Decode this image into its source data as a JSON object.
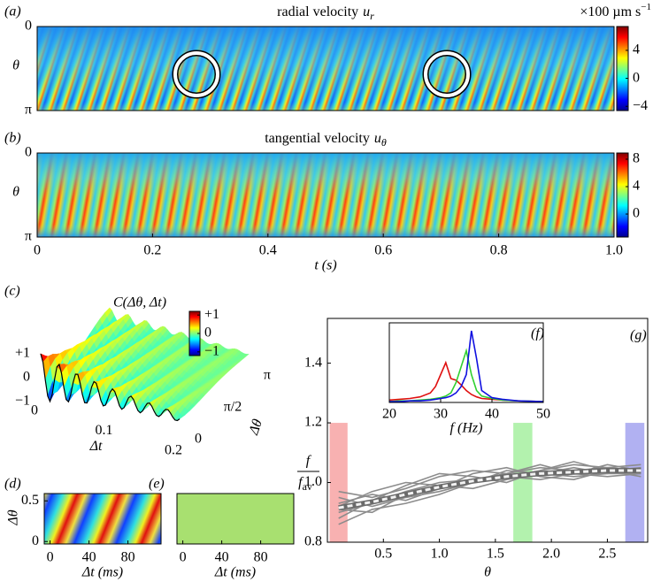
{
  "chart_data": [
    {
      "type": "heatmap",
      "panel": "(a)",
      "title": "radial velocity",
      "title_symbol": "u",
      "title_subscript": "r",
      "ylabel": "θ",
      "ylim": [
        0,
        3.1416
      ],
      "yticks": [
        {
          "value": 0,
          "label": "0"
        },
        {
          "value": 3.1416,
          "label": "π"
        }
      ],
      "xlim": [
        0,
        1
      ],
      "colorbar": {
        "label": "×100 µm s",
        "label_superscript": "−1",
        "clim": [
          -4.6,
          7.4
        ],
        "ticks": [
          {
            "value": -4,
            "label": "−4"
          },
          0,
          4
        ]
      }
    },
    {
      "type": "heatmap",
      "panel": "(b)",
      "title": "tangential velocity",
      "title_symbol": "u",
      "title_subscript": "θ",
      "ylabel": "θ",
      "ylim": [
        0,
        3.1416
      ],
      "yticks": [
        {
          "value": 0,
          "label": "0"
        },
        {
          "value": 3.1416,
          "label": "π"
        }
      ],
      "xlabel": "t (s)",
      "xlim": [
        0,
        1
      ],
      "xticks": [
        0,
        0.2,
        0.4,
        0.6,
        0.8,
        {
          "value": 1,
          "label": "1.0"
        }
      ],
      "colorbar": {
        "clim": [
          -3.35,
          8.9
        ],
        "ticks": [
          0,
          4,
          8
        ]
      }
    },
    {
      "type": "surface",
      "panel": "(c)",
      "title": "C(Δθ, Δt)",
      "zticks": [
        {
          "value": 1,
          "label": "+1"
        },
        0,
        {
          "value": -1,
          "label": "−1"
        }
      ],
      "xlabel": "Δt",
      "xticks": [
        0,
        0.1,
        0.2
      ],
      "ylabel": "Δθ",
      "yticks": [
        0,
        {
          "value": 1.5708,
          "label": "π/2"
        },
        {
          "value": 3.1416,
          "label": "π"
        }
      ],
      "colorbar": {
        "clim": [
          -1.2,
          1.2
        ],
        "ticks": [
          {
            "value": 1,
            "label": "+1"
          },
          0,
          {
            "value": -1,
            "label": "−1"
          }
        ]
      }
    },
    {
      "type": "heatmap",
      "panel": "(d)",
      "ylabel": "Δθ",
      "ylim": [
        -0.03,
        0.59
      ],
      "yticks": [
        0,
        0.5
      ],
      "xlabel": "Δt (ms)",
      "xlim": [
        -6,
        114
      ],
      "xticks": [
        0,
        40,
        80
      ]
    },
    {
      "type": "heatmap",
      "panel": "(e)",
      "ylim": [
        -0.03,
        0.59
      ],
      "xlabel": "Δt (ms)",
      "xlim": [
        -6,
        114
      ],
      "xticks": [
        0,
        40,
        80
      ]
    },
    {
      "type": "line",
      "panel": "(g)",
      "xlabel": "θ",
      "ylabel_numerator": "f",
      "ylabel_denominator": "f",
      "ylabel_subscript": "av",
      "xlim": [
        0,
        2.86
      ],
      "xticks": [
        0.5,
        {
          "value": 1,
          "label": "1.0"
        },
        1.5,
        {
          "value": 2,
          "label": "2.0"
        },
        2.5
      ],
      "ylim": [
        0.8,
        1.55
      ],
      "yticks": [
        0.8,
        {
          "value": 1,
          "label": "1.0"
        },
        1.2,
        1.4
      ],
      "bands": [
        {
          "range": [
            0.02,
            0.18
          ],
          "color": "#f7a3a3"
        },
        {
          "range": [
            1.66,
            1.83
          ],
          "color": "#a6f0a0"
        },
        {
          "range": [
            2.66,
            2.83
          ],
          "color": "#a3a3f0"
        }
      ],
      "band_ylim": [
        0.8,
        1.2
      ],
      "x": [
        0.1,
        0.4,
        0.7,
        1.0,
        1.3,
        1.6,
        1.9,
        2.2,
        2.5,
        2.8
      ],
      "series": [
        {
          "color": "#8c8c8c",
          "values": [
            0.9,
            0.93,
            0.97,
            1.0,
            1.01,
            1.03,
            1.05,
            1.04,
            1.05,
            1.06
          ]
        },
        {
          "color": "#8c8c8c",
          "values": [
            0.95,
            0.92,
            0.95,
            0.97,
            1.0,
            1.02,
            1.01,
            1.03,
            1.02,
            1.03
          ]
        },
        {
          "color": "#8c8c8c",
          "values": [
            0.88,
            0.94,
            0.99,
            1.03,
            1.02,
            1.0,
            1.04,
            1.06,
            1.05,
            1.04
          ]
        },
        {
          "color": "#8c8c8c",
          "values": [
            0.93,
            0.96,
            0.94,
            0.98,
            1.03,
            1.05,
            1.02,
            1.01,
            1.04,
            1.02
          ]
        },
        {
          "color": "#8c8c8c",
          "values": [
            0.91,
            0.9,
            0.96,
            0.99,
            0.98,
            1.01,
            1.03,
            1.05,
            1.03,
            1.05
          ]
        },
        {
          "color": "#8c8c8c",
          "values": [
            0.97,
            0.95,
            0.98,
            1.02,
            1.04,
            1.03,
            1.06,
            1.03,
            1.06,
            1.04
          ]
        },
        {
          "color": "#8c8c8c",
          "values": [
            0.86,
            0.91,
            0.93,
            0.96,
            1.0,
            1.04,
            1.03,
            1.02,
            1.03,
            1.03
          ]
        },
        {
          "color": "#8c8c8c",
          "values": [
            0.92,
            0.97,
            1.0,
            0.99,
            1.01,
            1.02,
            1.04,
            1.07,
            1.04,
            1.05
          ]
        },
        {
          "color": "#f2f2f2",
          "dashed": true,
          "values": [
            0.915,
            0.935,
            0.96,
            0.985,
            1.005,
            1.02,
            1.03,
            1.035,
            1.04,
            1.04
          ]
        }
      ]
    },
    {
      "type": "line",
      "panel": "(f)",
      "xlabel": "f (Hz)",
      "xlim": [
        20,
        50
      ],
      "xticks": [
        20,
        30,
        40,
        50
      ],
      "ylim": [
        0,
        1
      ],
      "x": [
        20,
        22,
        24,
        26,
        28,
        29,
        30,
        31,
        32,
        33,
        34,
        35,
        36,
        37,
        38,
        40,
        42,
        45,
        50
      ],
      "series": [
        {
          "color": "#e01010",
          "values": [
            0.03,
            0.04,
            0.05,
            0.07,
            0.12,
            0.2,
            0.35,
            0.5,
            0.3,
            0.28,
            0.22,
            0.15,
            0.1,
            0.07,
            0.05,
            0.04,
            0.03,
            0.02,
            0.01
          ]
        },
        {
          "color": "#30d030",
          "values": [
            0.01,
            0.02,
            0.02,
            0.03,
            0.04,
            0.05,
            0.06,
            0.08,
            0.12,
            0.25,
            0.45,
            0.65,
            0.35,
            0.15,
            0.08,
            0.05,
            0.03,
            0.02,
            0.01
          ]
        },
        {
          "color": "#1010e0",
          "values": [
            0.01,
            0.01,
            0.02,
            0.02,
            0.03,
            0.04,
            0.05,
            0.06,
            0.08,
            0.12,
            0.2,
            0.35,
            0.9,
            0.55,
            0.15,
            0.06,
            0.04,
            0.02,
            0.01
          ]
        }
      ]
    }
  ]
}
